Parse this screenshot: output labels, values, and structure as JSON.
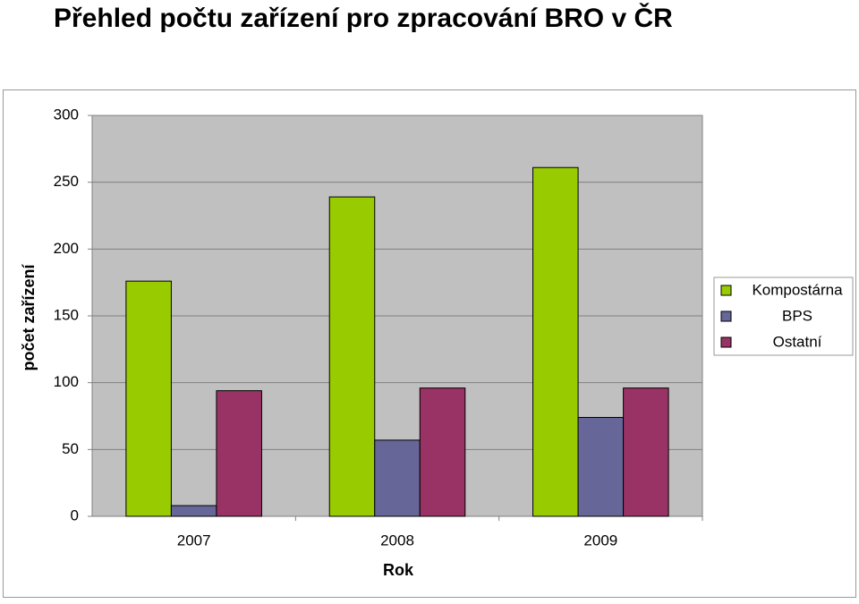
{
  "chart_data": {
    "type": "bar",
    "title": "Přehled počtu zařízení pro zpracování BRO v ČR",
    "x_label": "Rok",
    "y_label": "počet zařízení",
    "categories": [
      "2007",
      "2008",
      "2009"
    ],
    "series": [
      {
        "name": "Kompostárna",
        "color": "#99cc00",
        "values": [
          176,
          239,
          261
        ]
      },
      {
        "name": "BPS",
        "color": "#666699",
        "values": [
          8,
          57,
          74
        ]
      },
      {
        "name": "Ostatní",
        "color": "#993366",
        "values": [
          94,
          96,
          96
        ]
      }
    ],
    "ylim": [
      0,
      300
    ],
    "yticks": [
      0,
      50,
      100,
      150,
      200,
      250,
      300
    ],
    "grid": true,
    "legend": "right",
    "plot_background": "#c0c0c0"
  }
}
